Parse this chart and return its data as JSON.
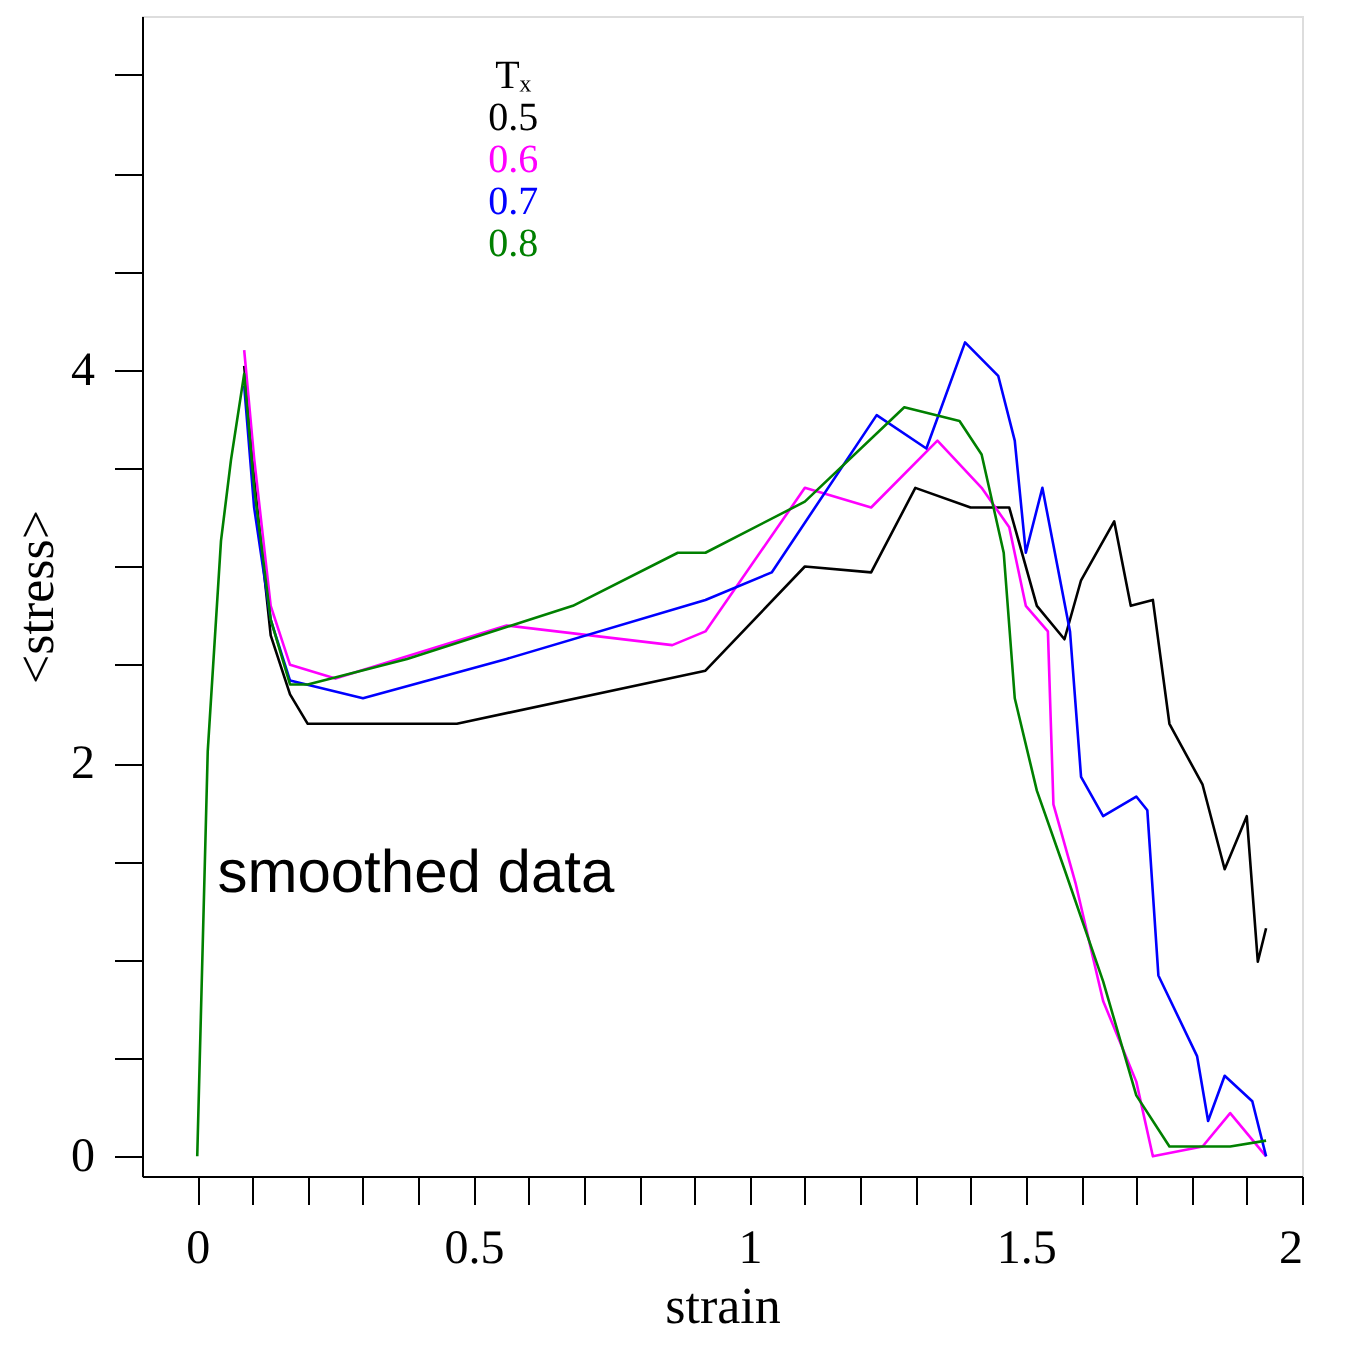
{
  "chart_data": {
    "type": "line",
    "xlabel": "strain",
    "ylabel": "<stress>",
    "legend_title": "Tₓ",
    "legend": "top",
    "annotations": [
      "smoothed data"
    ],
    "xlim": [
      -0.1,
      2.0
    ],
    "ylim": [
      -0.1,
      5.8
    ],
    "xticks": [
      0,
      {
        "value": 0.1,
        "label": null
      },
      {
        "value": 0.2,
        "label": null
      },
      {
        "value": 0.3,
        "label": null
      },
      {
        "value": 0.4,
        "label": null
      },
      0.5,
      {
        "value": 0.6,
        "label": null
      },
      {
        "value": 0.7,
        "label": null
      },
      {
        "value": 0.8,
        "label": null
      },
      {
        "value": 0.9,
        "label": null
      },
      1,
      {
        "value": 1.1,
        "label": null
      },
      {
        "value": 1.2,
        "label": null
      },
      {
        "value": 1.3,
        "label": null
      },
      {
        "value": 1.4,
        "label": null
      },
      1.5,
      {
        "value": 1.6,
        "label": null
      },
      {
        "value": 1.7,
        "label": null
      },
      {
        "value": 1.8,
        "label": null
      },
      {
        "value": 1.9,
        "label": null
      },
      2
    ],
    "yticks": [
      0,
      {
        "value": 0.5,
        "label": null
      },
      {
        "value": 1,
        "label": null
      },
      {
        "value": 1.5,
        "label": null
      },
      2,
      {
        "value": 2.5,
        "label": null
      },
      {
        "value": 3,
        "label": null
      },
      {
        "value": 3.5,
        "label": null
      },
      4,
      {
        "value": 4.5,
        "label": null
      },
      {
        "value": 5,
        "label": null
      },
      {
        "value": 5.5,
        "label": null
      }
    ],
    "grid": false,
    "marker": "none",
    "line_style": "solid",
    "series": [
      {
        "name": "0.5",
        "color": "#000000",
        "x": [
          0.085,
          0.103,
          0.133,
          0.168,
          0.2,
          0.47,
          0.92,
          1.1,
          1.22,
          1.3,
          1.4,
          1.47,
          1.52,
          1.57,
          1.6,
          1.66,
          1.69,
          1.73,
          1.76,
          1.82,
          1.86,
          1.9,
          1.92,
          1.935
        ],
        "values": [
          4.02,
          3.45,
          2.65,
          2.35,
          2.2,
          2.2,
          2.47,
          3.0,
          2.97,
          3.4,
          3.3,
          3.3,
          2.8,
          2.63,
          2.93,
          3.23,
          2.8,
          2.83,
          2.2,
          1.89,
          1.46,
          1.73,
          0.99,
          1.16
        ]
      },
      {
        "name": "0.6",
        "color": "#ff00ff",
        "x": [
          0.085,
          0.103,
          0.133,
          0.168,
          0.25,
          0.56,
          0.86,
          0.92,
          1.1,
          1.22,
          1.34,
          1.42,
          1.47,
          1.5,
          1.54,
          1.55,
          1.59,
          1.64,
          1.7,
          1.73,
          1.82,
          1.87,
          1.935
        ],
        "values": [
          4.1,
          3.55,
          2.8,
          2.5,
          2.43,
          2.7,
          2.6,
          2.67,
          3.4,
          3.3,
          3.64,
          3.4,
          3.2,
          2.8,
          2.67,
          1.79,
          1.39,
          0.79,
          0.38,
          0,
          0.05,
          0.22,
          0
        ]
      },
      {
        "name": "0.7",
        "color": "#0000ff",
        "x": [
          0.085,
          0.103,
          0.133,
          0.168,
          0.3,
          0.56,
          0.92,
          1.04,
          1.23,
          1.32,
          1.39,
          1.45,
          1.48,
          1.5,
          1.53,
          1.58,
          1.6,
          1.64,
          1.7,
          1.72,
          1.74,
          1.81,
          1.83,
          1.86,
          1.91,
          1.935
        ],
        "values": [
          3.92,
          3.3,
          2.73,
          2.42,
          2.33,
          2.53,
          2.83,
          2.97,
          3.77,
          3.6,
          4.14,
          3.97,
          3.64,
          3.07,
          3.4,
          2.67,
          1.93,
          1.73,
          1.83,
          1.76,
          0.92,
          0.51,
          0.18,
          0.41,
          0.28,
          0
        ]
      },
      {
        "name": "0.8",
        "color": "#008000",
        "x": [
          0,
          0.019,
          0.043,
          0.061,
          0.085,
          0.103,
          0.133,
          0.168,
          0.2,
          0.38,
          0.68,
          0.87,
          0.92,
          1.1,
          1.28,
          1.38,
          1.42,
          1.46,
          1.48,
          1.52,
          1.57,
          1.64,
          1.7,
          1.76,
          1.87,
          1.935
        ],
        "values": [
          0,
          2.06,
          3.13,
          3.54,
          3.98,
          3.4,
          2.73,
          2.4,
          2.4,
          2.53,
          2.8,
          3.07,
          3.07,
          3.33,
          3.81,
          3.74,
          3.57,
          3.07,
          2.33,
          1.86,
          1.46,
          0.89,
          0.31,
          0.05,
          0.05,
          0.08
        ]
      }
    ]
  }
}
